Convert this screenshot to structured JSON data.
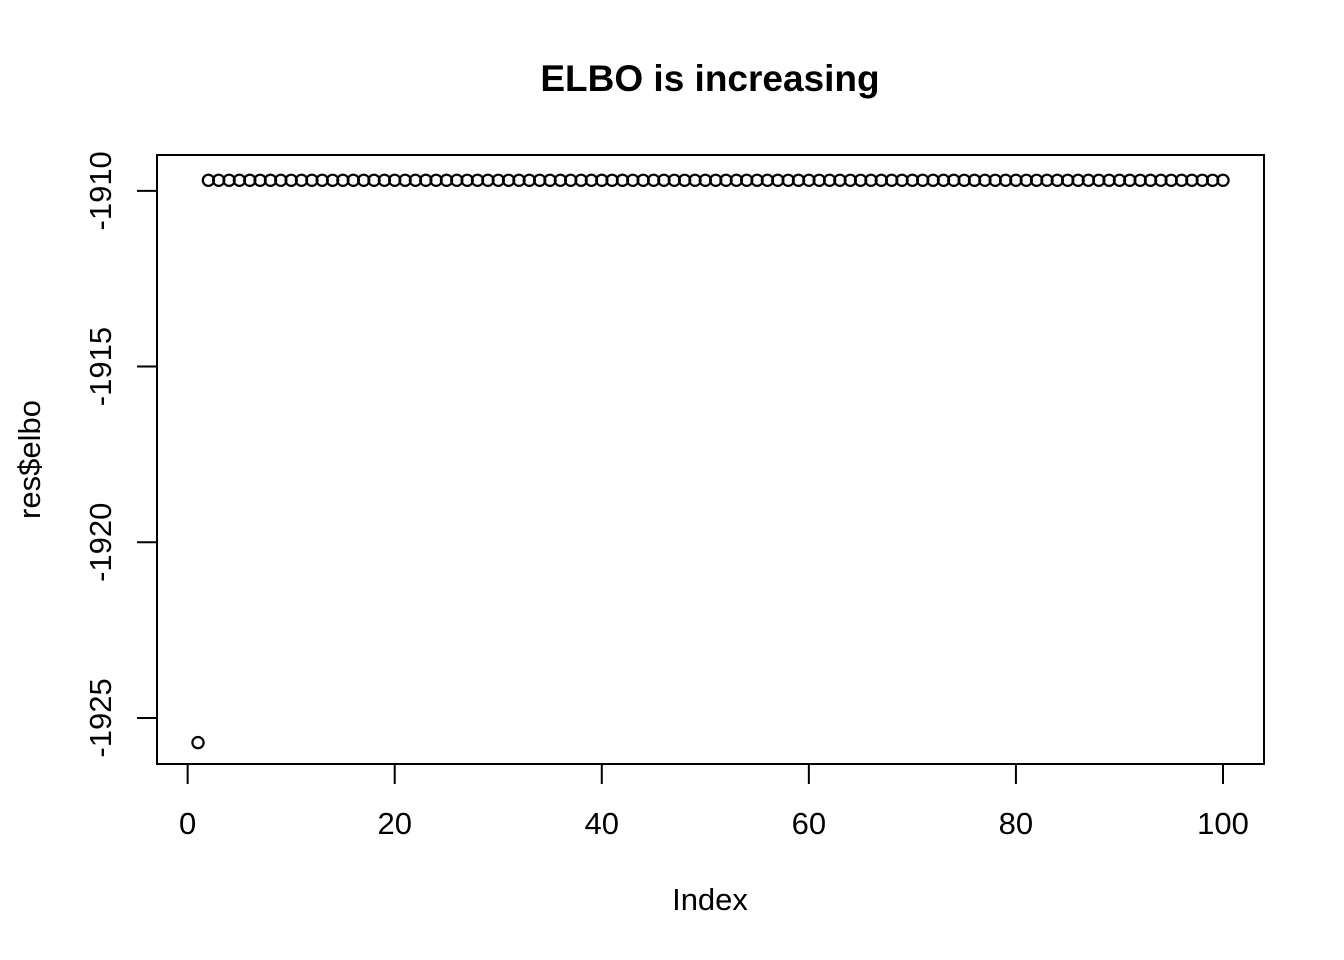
{
  "chart_data": {
    "type": "scatter",
    "title": "ELBO is increasing",
    "xlabel": "Index",
    "ylabel": "res$elbo",
    "marker": "open-circle",
    "point_color": "#000000",
    "background_color": "#ffffff",
    "grid": false,
    "legend": "none",
    "x_ticks": [
      0,
      20,
      40,
      60,
      80,
      100
    ],
    "y_ticks": [
      -1910,
      -1915,
      -1920,
      -1925
    ],
    "xlim": [
      -2.96,
      103.96
    ],
    "ylim": [
      -1926.31,
      -1908.98
    ],
    "x": [
      1,
      2,
      3,
      4,
      5,
      6,
      7,
      8,
      9,
      10,
      11,
      12,
      13,
      14,
      15,
      16,
      17,
      18,
      19,
      20,
      21,
      22,
      23,
      24,
      25,
      26,
      27,
      28,
      29,
      30,
      31,
      32,
      33,
      34,
      35,
      36,
      37,
      38,
      39,
      40,
      41,
      42,
      43,
      44,
      45,
      46,
      47,
      48,
      49,
      50,
      51,
      52,
      53,
      54,
      55,
      56,
      57,
      58,
      59,
      60,
      61,
      62,
      63,
      64,
      65,
      66,
      67,
      68,
      69,
      70,
      71,
      72,
      73,
      74,
      75,
      76,
      77,
      78,
      79,
      80,
      81,
      82,
      83,
      84,
      85,
      86,
      87,
      88,
      89,
      90,
      91,
      92,
      93,
      94,
      95,
      96,
      97,
      98,
      99,
      100
    ],
    "y": [
      -1925.7,
      -1909.7,
      -1909.7,
      -1909.7,
      -1909.7,
      -1909.7,
      -1909.7,
      -1909.7,
      -1909.7,
      -1909.7,
      -1909.7,
      -1909.7,
      -1909.7,
      -1909.7,
      -1909.7,
      -1909.7,
      -1909.7,
      -1909.7,
      -1909.7,
      -1909.7,
      -1909.7,
      -1909.7,
      -1909.7,
      -1909.7,
      -1909.7,
      -1909.7,
      -1909.7,
      -1909.7,
      -1909.7,
      -1909.7,
      -1909.7,
      -1909.7,
      -1909.7,
      -1909.7,
      -1909.7,
      -1909.7,
      -1909.7,
      -1909.7,
      -1909.7,
      -1909.7,
      -1909.7,
      -1909.7,
      -1909.7,
      -1909.7,
      -1909.7,
      -1909.7,
      -1909.7,
      -1909.7,
      -1909.7,
      -1909.7,
      -1909.7,
      -1909.7,
      -1909.7,
      -1909.7,
      -1909.7,
      -1909.7,
      -1909.7,
      -1909.7,
      -1909.7,
      -1909.7,
      -1909.7,
      -1909.7,
      -1909.7,
      -1909.7,
      -1909.7,
      -1909.7,
      -1909.7,
      -1909.7,
      -1909.7,
      -1909.7,
      -1909.7,
      -1909.7,
      -1909.7,
      -1909.7,
      -1909.7,
      -1909.7,
      -1909.7,
      -1909.7,
      -1909.7,
      -1909.7,
      -1909.7,
      -1909.7,
      -1909.7,
      -1909.7,
      -1909.7,
      -1909.7,
      -1909.7,
      -1909.7,
      -1909.7,
      -1909.7,
      -1909.7,
      -1909.7,
      -1909.7,
      -1909.7,
      -1909.7,
      -1909.7,
      -1909.7,
      -1909.7,
      -1909.7,
      -1909.7
    ]
  }
}
